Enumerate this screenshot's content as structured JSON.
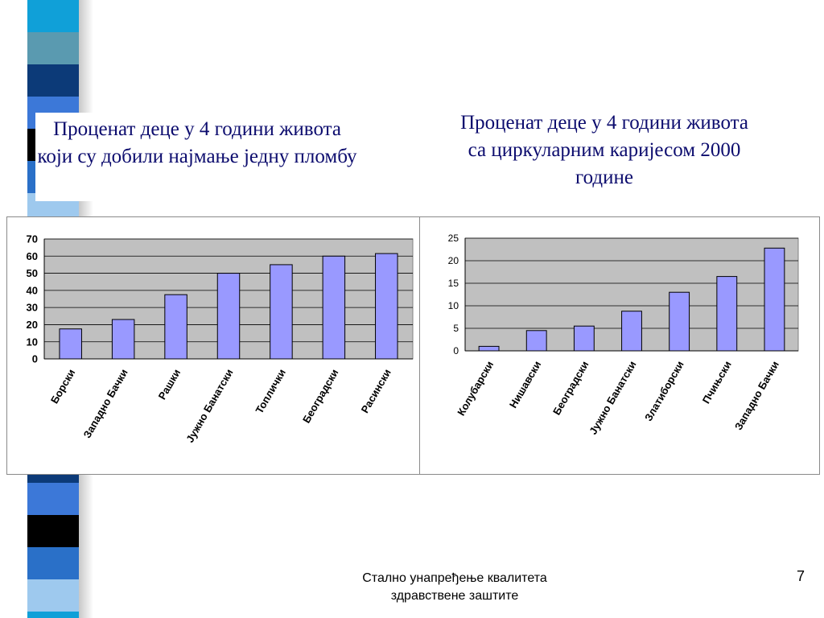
{
  "slide": {
    "footer_line1": "Стално унапређење квалитета",
    "footer_line2": "здравствене заштите",
    "page_number": "7"
  },
  "colors": {
    "bar_fill": "#9999ff",
    "plot_bg": "#c0c0c0",
    "title_text": "#0c0c6e",
    "stripes": [
      "#10a0d8",
      "#5a9ab0",
      "#0c3a78",
      "#3c78d8",
      "#000000",
      "#2a70c8",
      "#9ec9ee",
      "#10a0d8",
      "#e6e6c0",
      "#0c3a78",
      "#3c78d8",
      "#000000"
    ]
  },
  "chart_data": [
    {
      "type": "bar",
      "title": "Проценат деце у 4 години живота који су добили најмање једну пломбу",
      "categories": [
        "Борски",
        "Западно Бачки",
        "Рашки",
        "Јужно Банатски",
        "Топлички",
        "Београдски",
        "Расински"
      ],
      "values": [
        17.5,
        23,
        37.5,
        50,
        55,
        60,
        61.5
      ],
      "ylim": [
        0,
        70
      ],
      "yticks": [
        0,
        10,
        20,
        30,
        40,
        50,
        60,
        70
      ],
      "xlabel": "",
      "ylabel": "",
      "grid": true,
      "legend": "none"
    },
    {
      "type": "bar",
      "title": "Проценат деце у 4 години живота са циркуларним каријесом 2000 године",
      "categories": [
        "Колубарски",
        "Нишавски",
        "Београдски",
        "Јужно Банатски",
        "Златиборски",
        "Пчињски",
        "Западно Бачки"
      ],
      "values": [
        1,
        4.5,
        5.5,
        8.8,
        13,
        16.5,
        22.8
      ],
      "ylim": [
        0,
        25
      ],
      "yticks": [
        0,
        5,
        10,
        15,
        20,
        25
      ],
      "xlabel": "",
      "ylabel": "",
      "grid": true,
      "legend": "none"
    }
  ]
}
